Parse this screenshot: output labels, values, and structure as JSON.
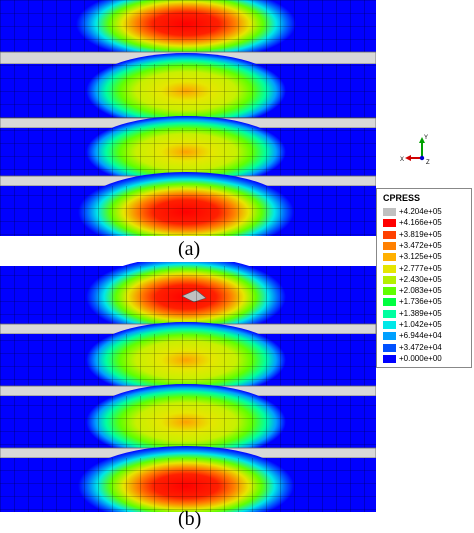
{
  "captions": {
    "a": "(a)",
    "b": "(b)"
  },
  "legend": {
    "title": "CPRESS",
    "entries": [
      {
        "label": "+4.204e+05",
        "color": "#c0c0c0"
      },
      {
        "label": "+4.166e+05",
        "color": "#ff0000"
      },
      {
        "label": "+3.819e+05",
        "color": "#ff4000"
      },
      {
        "label": "+3.472e+05",
        "color": "#ff8000"
      },
      {
        "label": "+3.125e+05",
        "color": "#ffb000"
      },
      {
        "label": "+2.777e+05",
        "color": "#e6e600"
      },
      {
        "label": "+2.430e+05",
        "color": "#b4f000"
      },
      {
        "label": "+2.083e+05",
        "color": "#60ff00"
      },
      {
        "label": "+1.736e+05",
        "color": "#00ff40"
      },
      {
        "label": "+1.389e+05",
        "color": "#00ffa0"
      },
      {
        "label": "+1.042e+05",
        "color": "#00e8e8"
      },
      {
        "label": "+6.944e+04",
        "color": "#00a0ff"
      },
      {
        "label": "+3.472e+04",
        "color": "#0050ff"
      },
      {
        "label": "+0.000e+00",
        "color": "#0000ff"
      }
    ]
  },
  "axes_triad": {
    "x": "X",
    "y": "Y",
    "z": "Z"
  }
}
